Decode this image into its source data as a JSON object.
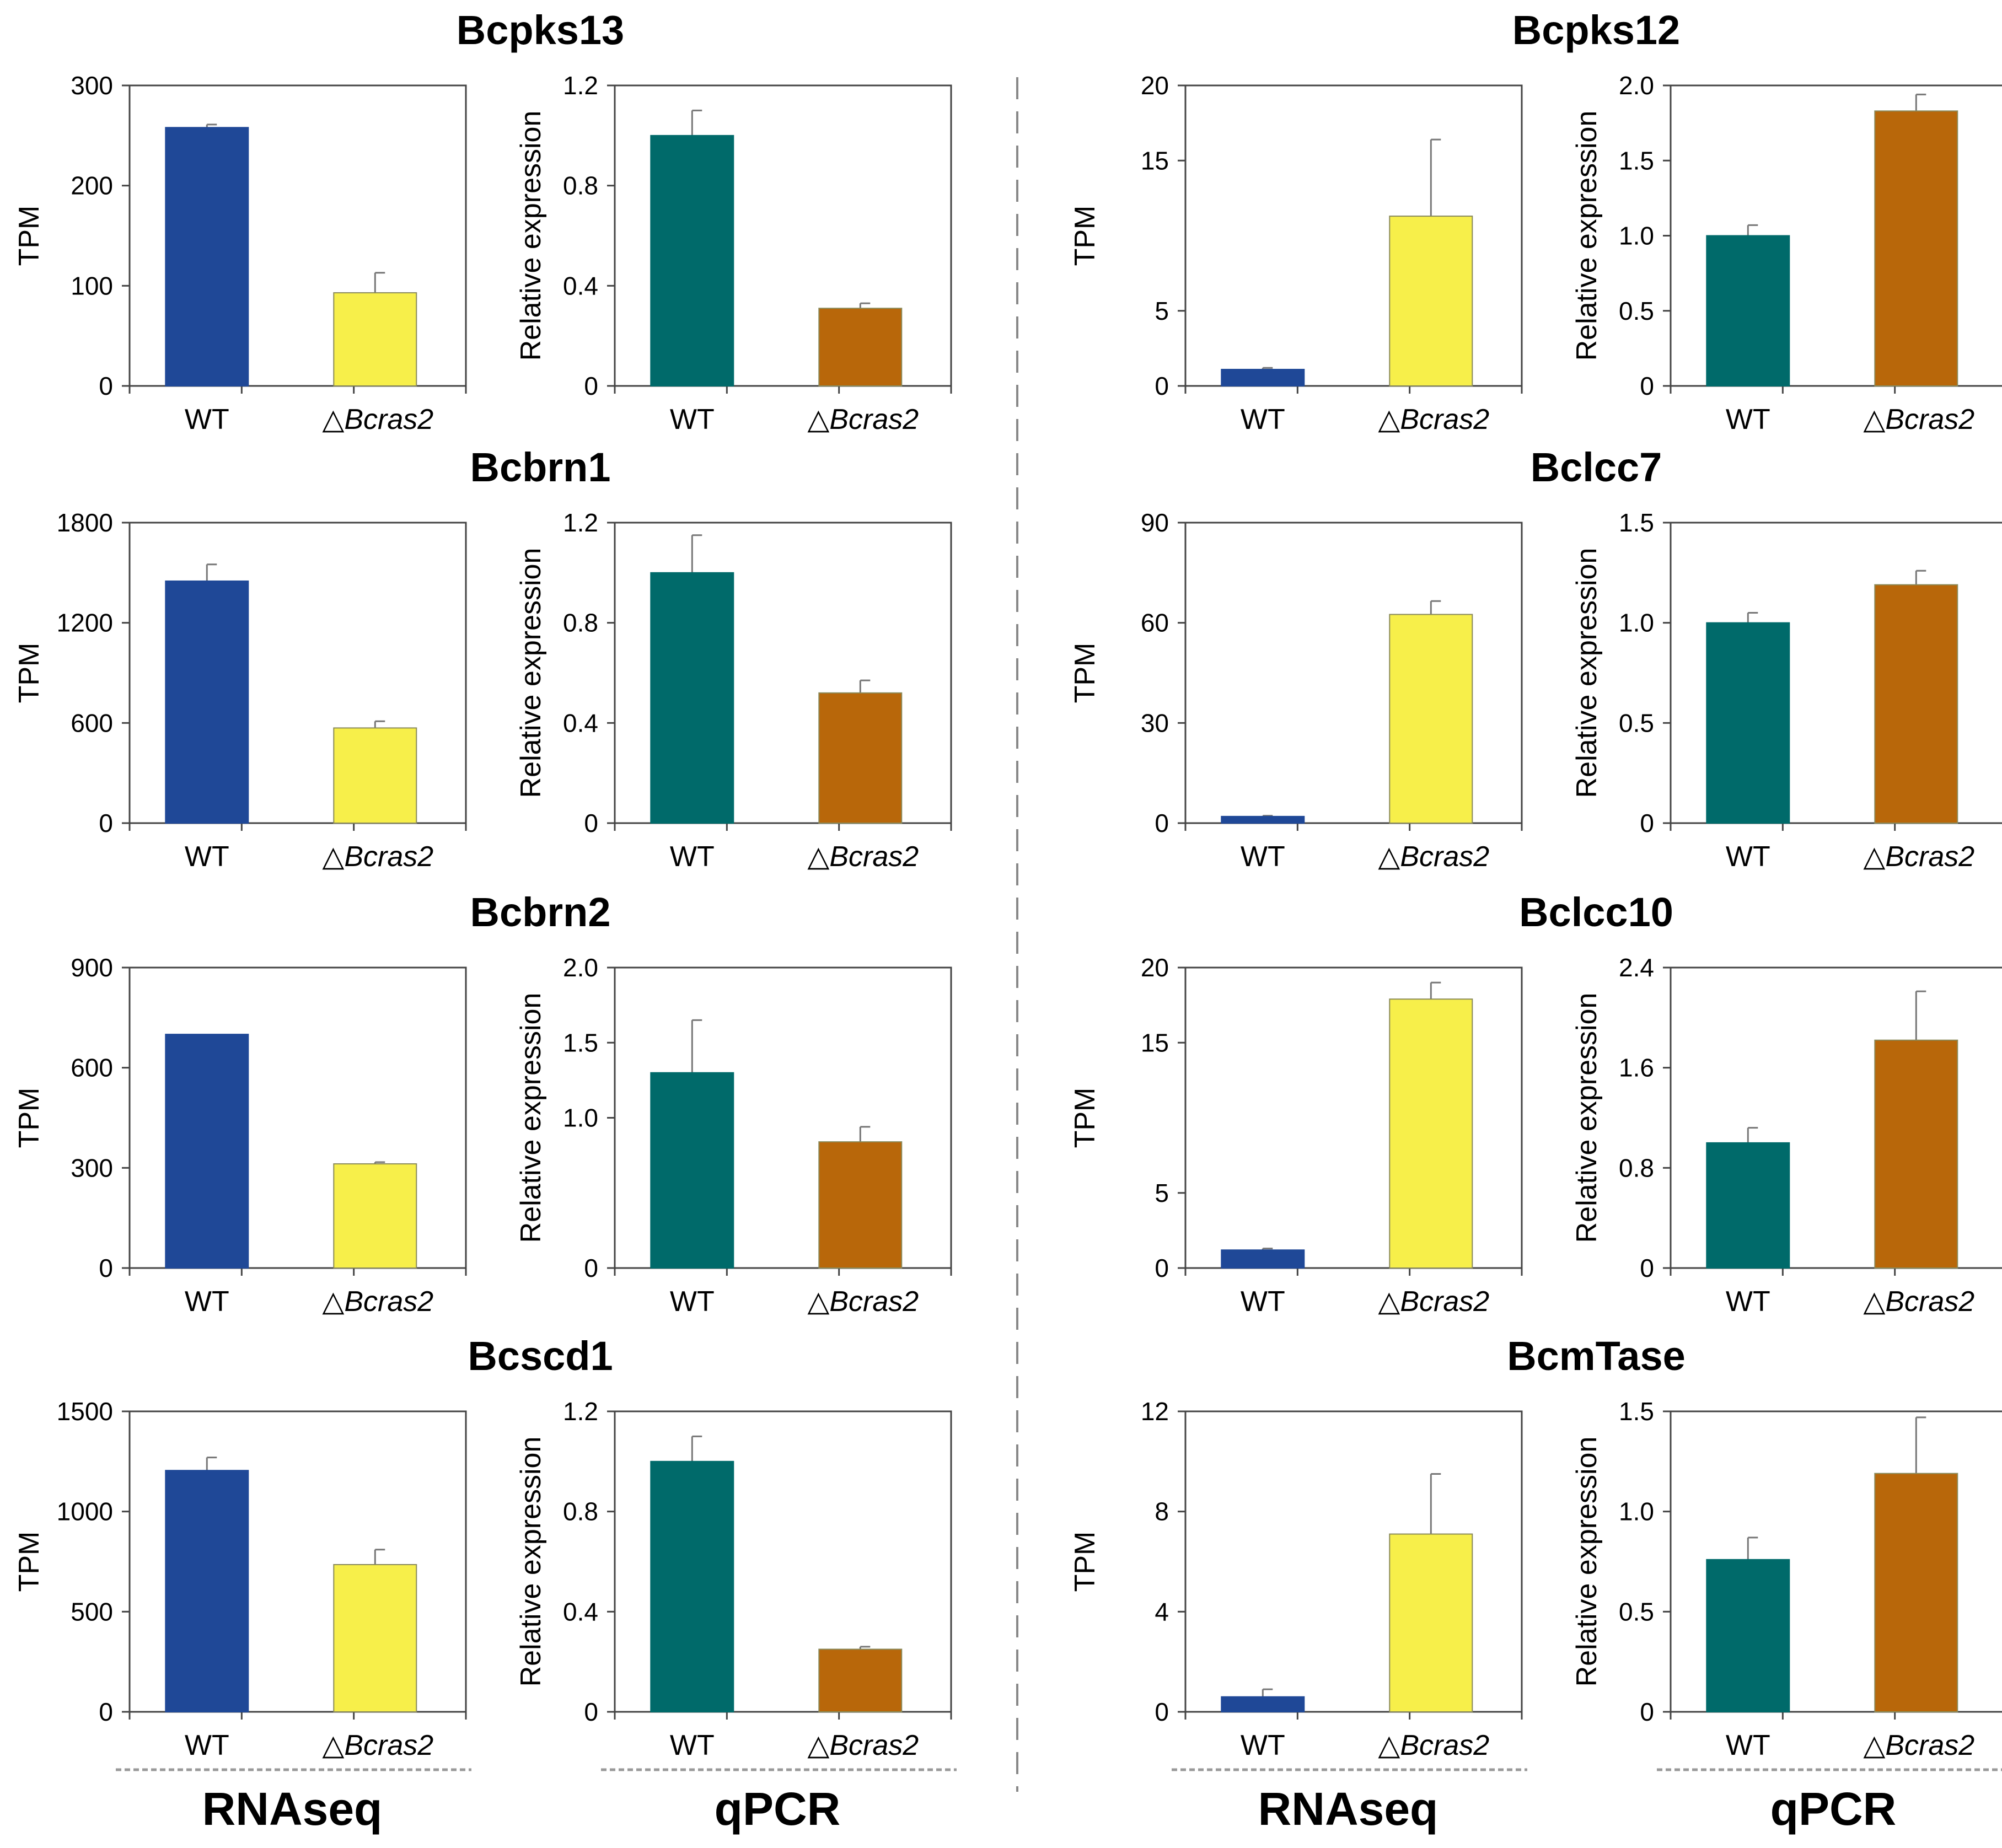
{
  "figure": {
    "categories": [
      "WT",
      "△",
      "Bcras2"
    ],
    "method_labels": {
      "rnaseq": "RNAseq",
      "qpcr": "qPCR"
    },
    "colors": {
      "rnaseq_wt": "#1f4897",
      "rnaseq_mut": "#f7ef4a",
      "qpcr_wt": "#006a6a",
      "qpcr_mut": "#b8670a",
      "axis": "#444444",
      "divider": "#888888"
    }
  },
  "chart_data": [
    {
      "gene": "Bcpks13",
      "type": "bar",
      "rnaseq": {
        "ylabel": "TPM",
        "ylim": [
          0,
          300
        ],
        "ticks": [
          "0",
          "100",
          "200",
          "300"
        ],
        "values": [
          258,
          93
        ],
        "errors": [
          3,
          20
        ]
      },
      "qpcr": {
        "ylabel": "Relative expression",
        "ylim": [
          0,
          1.2
        ],
        "ticks": [
          "0",
          "0.4",
          "0.8",
          "1.2"
        ],
        "values": [
          1.0,
          0.31
        ],
        "errors": [
          0.1,
          0.02
        ]
      }
    },
    {
      "gene": "Bcpks12",
      "type": "bar",
      "rnaseq": {
        "ylabel": "TPM",
        "ylim": [
          0,
          20
        ],
        "ticks": [
          "0",
          "5",
          "15",
          "20"
        ],
        "values": [
          1.1,
          11.3
        ],
        "errors": [
          0.1,
          5.1
        ]
      },
      "qpcr": {
        "ylabel": "Relative expression",
        "ylim": [
          0,
          2.0
        ],
        "ticks": [
          "0",
          "0.5",
          "1.0",
          "1.5",
          "2.0"
        ],
        "values": [
          1.0,
          1.83
        ],
        "errors": [
          0.07,
          0.11
        ]
      }
    },
    {
      "gene": "Bcbrn1",
      "type": "bar",
      "rnaseq": {
        "ylabel": "TPM",
        "ylim": [
          0,
          1800
        ],
        "ticks": [
          "0",
          "600",
          "1200",
          "1800"
        ],
        "values": [
          1450,
          570
        ],
        "errors": [
          100,
          40
        ]
      },
      "qpcr": {
        "ylabel": "Relative expression",
        "ylim": [
          0,
          1.2
        ],
        "ticks": [
          "0",
          "0.4",
          "0.8",
          "1.2"
        ],
        "values": [
          1.0,
          0.52
        ],
        "errors": [
          0.15,
          0.05
        ]
      }
    },
    {
      "gene": "Bclcc7",
      "type": "bar",
      "rnaseq": {
        "ylabel": "TPM",
        "ylim": [
          0,
          90
        ],
        "ticks": [
          "0",
          "30",
          "60",
          "90"
        ],
        "values": [
          2,
          62.5
        ],
        "errors": [
          0.2,
          4
        ]
      },
      "qpcr": {
        "ylabel": "Relative expression",
        "ylim": [
          0,
          1.5
        ],
        "ticks": [
          "0",
          "0.5",
          "1.0",
          "1.5"
        ],
        "values": [
          1.0,
          1.19
        ],
        "errors": [
          0.05,
          0.07
        ]
      }
    },
    {
      "gene": "Bcbrn2",
      "type": "bar",
      "rnaseq": {
        "ylabel": "TPM",
        "ylim": [
          0,
          900
        ],
        "ticks": [
          "0",
          "300",
          "600",
          "900"
        ],
        "values": [
          700,
          312
        ],
        "errors": [
          0,
          5
        ]
      },
      "qpcr": {
        "ylabel": "Relative expression",
        "ylim": [
          0,
          2.0
        ],
        "ticks": [
          "0",
          "1.0",
          "1.5",
          "2.0"
        ],
        "values": [
          1.3,
          0.84
        ],
        "errors": [
          0.35,
          0.1
        ]
      }
    },
    {
      "gene": "Bclcc10",
      "type": "bar",
      "rnaseq": {
        "ylabel": "TPM",
        "ylim": [
          0,
          20
        ],
        "ticks": [
          "0",
          "5",
          "15",
          "20"
        ],
        "values": [
          1.2,
          17.9
        ],
        "errors": [
          0.1,
          1.1
        ]
      },
      "qpcr": {
        "ylabel": "Relative expression",
        "ylim": [
          0,
          2.4
        ],
        "ticks": [
          "0",
          "0.8",
          "1.6",
          "2.4"
        ],
        "values": [
          1.0,
          1.82
        ],
        "errors": [
          0.12,
          0.39
        ]
      }
    },
    {
      "gene": "Bcscd1",
      "type": "bar",
      "rnaseq": {
        "ylabel": "TPM",
        "ylim": [
          0,
          1500
        ],
        "ticks": [
          "0",
          "500",
          "1000",
          "1500"
        ],
        "values": [
          1205,
          735
        ],
        "errors": [
          65,
          75
        ]
      },
      "qpcr": {
        "ylabel": "Relative expression",
        "ylim": [
          0,
          1.2
        ],
        "ticks": [
          "0",
          "0.4",
          "0.8",
          "1.2"
        ],
        "values": [
          1.0,
          0.25
        ],
        "errors": [
          0.1,
          0.01
        ]
      }
    },
    {
      "gene": "BcmTase",
      "type": "bar",
      "rnaseq": {
        "ylabel": "TPM",
        "ylim": [
          0,
          12
        ],
        "ticks": [
          "0",
          "4",
          "8",
          "12"
        ],
        "values": [
          0.6,
          7.1
        ],
        "errors": [
          0.3,
          2.4
        ]
      },
      "qpcr": {
        "ylabel": "Relative expression",
        "ylim": [
          0,
          1.5
        ],
        "ticks": [
          "0",
          "0.5",
          "1.0",
          "1.5"
        ],
        "values": [
          0.76,
          1.19
        ],
        "errors": [
          0.11,
          0.28
        ]
      }
    }
  ]
}
